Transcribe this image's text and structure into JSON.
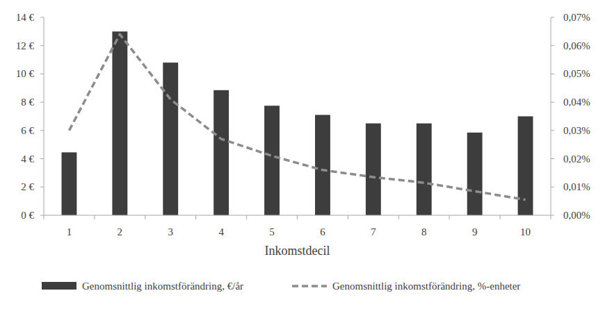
{
  "chart_data": {
    "type": "bar",
    "xlabel": "Inkomstdecil",
    "categories": [
      "1",
      "2",
      "3",
      "4",
      "5",
      "6",
      "7",
      "8",
      "9",
      "10"
    ],
    "series": [
      {
        "name": "Genomsnittlig inkomstförändring, €/år",
        "type": "bar",
        "color": "#3d3d3d",
        "values": [
          4.45,
          13.0,
          10.8,
          8.85,
          7.75,
          7.1,
          6.5,
          6.5,
          5.85,
          7.0
        ]
      },
      {
        "name": "Genomsnittlig inkomstförändring, %-enheter",
        "type": "line",
        "axis": "y2",
        "color": "#8c8c8c",
        "line_style": "dashed",
        "values": [
          0.03,
          0.064,
          0.041,
          0.027,
          0.021,
          0.016,
          0.0135,
          0.0115,
          0.0085,
          0.0055
        ]
      }
    ],
    "ylim": [
      0,
      14
    ],
    "yticks": [
      {
        "value": 0,
        "label": "0 €"
      },
      {
        "value": 2,
        "label": "2 €"
      },
      {
        "value": 4,
        "label": "4 €"
      },
      {
        "value": 6,
        "label": "6 €"
      },
      {
        "value": 8,
        "label": "8 €"
      },
      {
        "value": 10,
        "label": "10 €"
      },
      {
        "value": 12,
        "label": "12 €"
      },
      {
        "value": 14,
        "label": "14 €"
      }
    ],
    "y2lim": [
      0,
      0.07
    ],
    "y2ticks": [
      {
        "value": 0,
        "label": "0,00%"
      },
      {
        "value": 0.01,
        "label": "0,01%"
      },
      {
        "value": 0.02,
        "label": "0,02%"
      },
      {
        "value": 0.03,
        "label": "0,03%"
      },
      {
        "value": 0.04,
        "label": "0,04%"
      },
      {
        "value": 0.05,
        "label": "0,05%"
      },
      {
        "value": 0.06,
        "label": "0,06%"
      },
      {
        "value": 0.07,
        "label": "0,07%"
      }
    ],
    "grid": false,
    "legend": "bottom"
  }
}
